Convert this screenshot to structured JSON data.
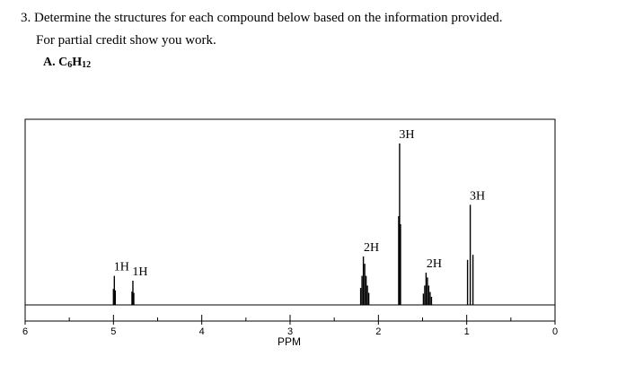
{
  "question": {
    "title": "3. Determine the structures for each compound below based on the information provided.",
    "subtitle": "For partial credit show you work.",
    "part_label": "A.",
    "formula": "C6H12",
    "formula_parts": {
      "c": "C",
      "c_sub": "6",
      "h": "H",
      "h_sub": "12"
    }
  },
  "chart_data": {
    "type": "nmr_spectrum",
    "x_axis": {
      "label": "PPM",
      "range": [
        6,
        0
      ],
      "ticks": [
        6,
        5,
        4,
        3,
        2,
        1,
        0
      ],
      "tick_labels": [
        "6",
        "5",
        "4",
        "3",
        "2",
        "1",
        "0"
      ]
    },
    "peaks": [
      {
        "ppm": 4.99,
        "label": "1H",
        "relative_height": 0.18,
        "multiplicity": "singlet"
      },
      {
        "ppm": 4.78,
        "label": "1H",
        "relative_height": 0.15,
        "multiplicity": "singlet"
      },
      {
        "ppm": 2.16,
        "label": "2H",
        "relative_height": 0.3,
        "multiplicity": "multiplet"
      },
      {
        "ppm": 1.76,
        "label": "3H",
        "relative_height": 1.0,
        "multiplicity": "singlet"
      },
      {
        "ppm": 1.45,
        "label": "2H",
        "relative_height": 0.2,
        "multiplicity": "multiplet"
      },
      {
        "ppm": 0.96,
        "label": "3H",
        "relative_height": 0.62,
        "multiplicity": "triplet"
      }
    ]
  }
}
